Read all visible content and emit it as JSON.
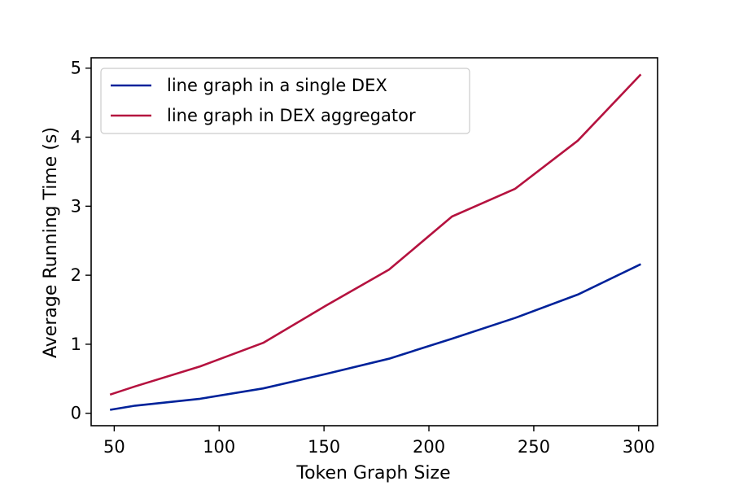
{
  "chart_data": {
    "type": "line",
    "xlabel": "Token Graph Size",
    "ylabel": "Average Running Time (s)",
    "xlim": [
      39,
      309
    ],
    "ylim": [
      -0.18,
      5.15
    ],
    "xticks": [
      50,
      100,
      150,
      200,
      250,
      300
    ],
    "yticks": [
      0,
      1,
      2,
      3,
      4,
      5
    ],
    "grid": false,
    "legend_position": "upper-left",
    "series": [
      {
        "name": "line graph in a single DEX",
        "color": "#00229a",
        "x": [
          48,
          60,
          91,
          121,
          151,
          181,
          211,
          241,
          271,
          301
        ],
        "y": [
          0.05,
          0.11,
          0.21,
          0.36,
          0.57,
          0.79,
          1.08,
          1.38,
          1.72,
          2.16
        ]
      },
      {
        "name": "line graph in DEX aggregator",
        "color": "#b5123f",
        "x": [
          48,
          60,
          91,
          121,
          151,
          181,
          211,
          241,
          271,
          301
        ],
        "y": [
          0.27,
          0.39,
          0.68,
          1.02,
          1.56,
          2.08,
          2.85,
          3.25,
          3.95,
          4.91
        ]
      }
    ]
  }
}
